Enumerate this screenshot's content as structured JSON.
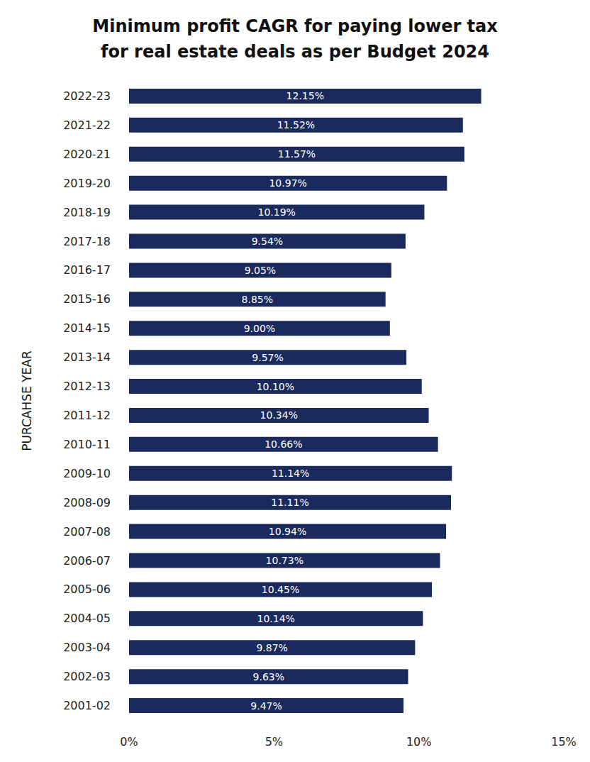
{
  "chart_data": {
    "type": "bar",
    "title": "Minimum profit CAGR for paying lower tax\nfor real estate deals as per Budget 2024",
    "y_label": "PURCAHSE YEAR",
    "orientation": "horizontal",
    "categories": [
      "2022-23",
      "2021-22",
      "2020-21",
      "2019-20",
      "2018-19",
      "2017-18",
      "2016-17",
      "2015-16",
      "2014-15",
      "2013-14",
      "2012-13",
      "2011-12",
      "2010-11",
      "2009-10",
      "2008-09",
      "2007-08",
      "2006-07",
      "2005-06",
      "2004-05",
      "2003-04",
      "2002-03",
      "2001-02"
    ],
    "values": [
      12.15,
      11.52,
      11.57,
      10.97,
      10.19,
      9.54,
      9.05,
      8.85,
      9.0,
      9.57,
      10.1,
      10.34,
      10.66,
      11.14,
      11.11,
      10.94,
      10.73,
      10.45,
      10.14,
      9.87,
      9.63,
      9.47
    ],
    "value_labels": [
      "12.15%",
      "11.52%",
      "11.57%",
      "10.97%",
      "10.19%",
      "9.54%",
      "9.05%",
      "8.85%",
      "9.00%",
      "9.57%",
      "10.10%",
      "10.34%",
      "10.66%",
      "11.14%",
      "11.11%",
      "10.94%",
      "10.73%",
      "10.45%",
      "10.14%",
      "9.87%",
      "9.63%",
      "9.47%"
    ],
    "color": "#1b2a5c",
    "xlim": [
      0,
      15
    ],
    "xticks": [
      {
        "value": 0,
        "label": "0%"
      },
      {
        "value": 5,
        "label": "5%"
      },
      {
        "value": 10,
        "label": "10%"
      },
      {
        "value": 15,
        "label": "15%"
      }
    ],
    "grid": false,
    "data_labels": true
  }
}
